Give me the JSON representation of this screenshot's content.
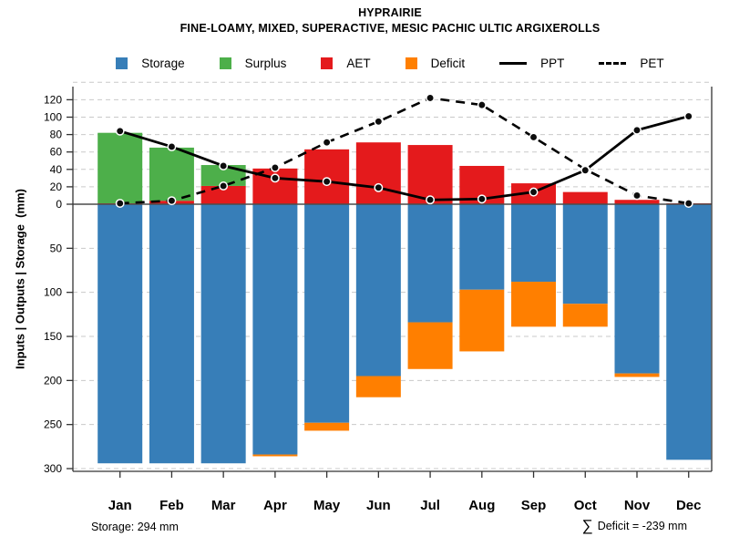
{
  "header": {
    "title": "HYPRAIRIE",
    "subtitle": "FINE-LOAMY, MIXED, SUPERACTIVE, MESIC PACHIC ULTIC ARGIXEROLLS"
  },
  "legend": {
    "items": [
      {
        "label": "Storage",
        "type": "swatch",
        "color": "#377EB8"
      },
      {
        "label": "Surplus",
        "type": "swatch",
        "color": "#4DAF4A"
      },
      {
        "label": "AET",
        "type": "swatch",
        "color": "#E41A1C"
      },
      {
        "label": "Deficit",
        "type": "swatch",
        "color": "#FF7F00"
      },
      {
        "label": "PPT",
        "type": "solid-line",
        "color": "#000000"
      },
      {
        "label": "PET",
        "type": "dashed-line",
        "color": "#000000"
      }
    ]
  },
  "chart_data": {
    "type": "bar",
    "subtype": "mirrored water-balance combo (stacked bars up/down + 2 line series)",
    "months": [
      "Jan",
      "Feb",
      "Mar",
      "Apr",
      "May",
      "Jun",
      "Jul",
      "Aug",
      "Sep",
      "Oct",
      "Nov",
      "Dec"
    ],
    "ylabel": "Inputs | Outputs | Storage  (mm)",
    "yticks_up": [
      0,
      20,
      40,
      60,
      80,
      100,
      120
    ],
    "yticks_down": [
      50,
      100,
      150,
      200,
      250,
      300
    ],
    "ylim_up": [
      0,
      140
    ],
    "ylim_down": [
      0,
      300
    ],
    "grid": "dashed horizontal",
    "legend_position": "top-center",
    "series": [
      {
        "name": "Storage",
        "type": "bar",
        "direction": "down",
        "color": "#377EB8",
        "values": [
          294,
          294,
          294,
          284,
          248,
          195,
          134,
          97,
          88,
          113,
          192,
          290
        ]
      },
      {
        "name": "Surplus",
        "type": "bar",
        "direction": "up",
        "stacked_on": "AET",
        "color": "#4DAF4A",
        "values": [
          81,
          61,
          24,
          0,
          0,
          0,
          0,
          0,
          0,
          0,
          0,
          0
        ]
      },
      {
        "name": "AET",
        "type": "bar",
        "direction": "up",
        "color": "#E41A1C",
        "values": [
          1,
          4,
          21,
          41,
          63,
          71,
          68,
          44,
          24,
          14,
          5,
          1
        ]
      },
      {
        "name": "Deficit",
        "type": "bar",
        "direction": "down",
        "stacked_on": "Storage",
        "color": "#FF7F00",
        "values": [
          0,
          0,
          0,
          2,
          9,
          24,
          53,
          70,
          51,
          26,
          4,
          0
        ]
      },
      {
        "name": "PPT",
        "type": "line",
        "style": "solid",
        "color": "#000000",
        "values": [
          84,
          66,
          44,
          30,
          26,
          19,
          5,
          6,
          14,
          39,
          85,
          101
        ]
      },
      {
        "name": "PET",
        "type": "line",
        "style": "dashed",
        "color": "#000000",
        "values": [
          1,
          4,
          21,
          42,
          71,
          95,
          122,
          114,
          77,
          40,
          10,
          1
        ]
      }
    ]
  },
  "annotations": {
    "storage_note": "Storage: 294 mm",
    "deficit_symbol": "∑",
    "deficit_note": "Deficit = -239 mm"
  }
}
